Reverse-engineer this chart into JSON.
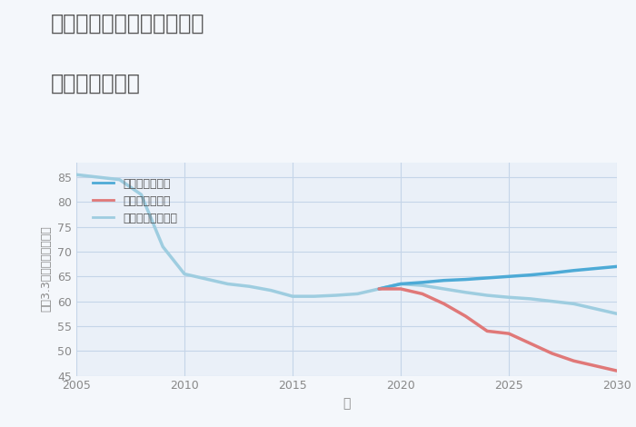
{
  "title1": "奈良県奈良市学園緑ヶ丘の",
  "title2": "土地の価格推移",
  "xlabel": "年",
  "ylabel": "坪（3.3㎡）単価（万円）",
  "background_color": "#f4f7fb",
  "plot_bg_color": "#eaf0f8",
  "grid_color": "#c5d5e8",
  "ylim": [
    45,
    88
  ],
  "xlim": [
    2005,
    2030
  ],
  "yticks": [
    45,
    50,
    55,
    60,
    65,
    70,
    75,
    80,
    85
  ],
  "xticks": [
    2005,
    2010,
    2015,
    2020,
    2025,
    2030
  ],
  "good_scenario": {
    "label": "グッドシナリオ",
    "color": "#4daad6",
    "linewidth": 2.5,
    "x": [
      2019,
      2020,
      2021,
      2022,
      2023,
      2024,
      2025,
      2026,
      2027,
      2028,
      2029,
      2030
    ],
    "y": [
      62.5,
      63.5,
      63.8,
      64.2,
      64.4,
      64.7,
      65.0,
      65.3,
      65.7,
      66.2,
      66.6,
      67.0
    ]
  },
  "bad_scenario": {
    "label": "バッドシナリオ",
    "color": "#e07878",
    "linewidth": 2.5,
    "x": [
      2019,
      2020,
      2021,
      2022,
      2023,
      2024,
      2025,
      2026,
      2027,
      2028,
      2029,
      2030
    ],
    "y": [
      62.5,
      62.5,
      61.5,
      59.5,
      57.0,
      54.0,
      53.5,
      51.5,
      49.5,
      48.0,
      47.0,
      46.0
    ]
  },
  "normal_scenario": {
    "label": "ノーマルシナリオ",
    "color": "#9ecde0",
    "linewidth": 2.5,
    "x": [
      2005,
      2006,
      2007,
      2008,
      2009,
      2010,
      2011,
      2012,
      2013,
      2014,
      2015,
      2016,
      2017,
      2018,
      2019,
      2020,
      2021,
      2022,
      2023,
      2024,
      2025,
      2026,
      2027,
      2028,
      2029,
      2030
    ],
    "y": [
      85.5,
      85.0,
      84.5,
      81.5,
      71.0,
      65.5,
      64.5,
      63.5,
      63.0,
      62.2,
      61.0,
      61.0,
      61.2,
      61.5,
      62.5,
      63.5,
      63.2,
      62.5,
      61.8,
      61.2,
      60.8,
      60.5,
      60.0,
      59.5,
      58.5,
      57.5
    ]
  }
}
